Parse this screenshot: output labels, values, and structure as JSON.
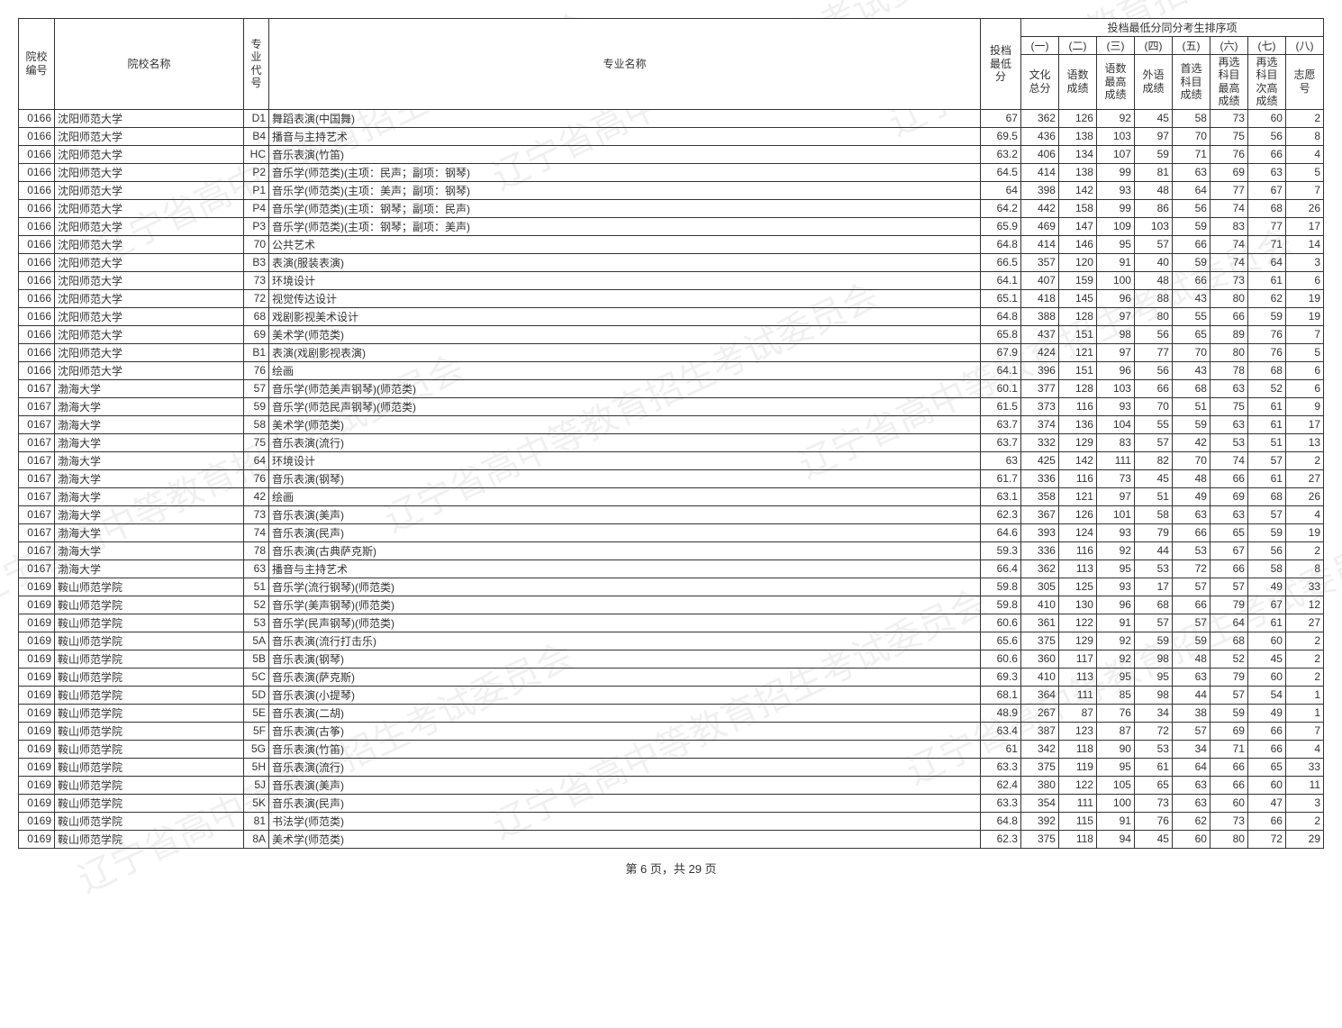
{
  "footer": "第 6 页，共 29 页",
  "watermark_text": "辽宁省高中等教育招生考试委员会",
  "headers": {
    "col_code": "院校\n编号",
    "col_name": "院校名称",
    "col_mcode": "专\n业\n代\n号",
    "col_major": "专业名称",
    "col_score": "投档\n最低\n分",
    "tiebreak_group": "投档最低分同分考生排序项",
    "t1": "(一)",
    "t2": "(二)",
    "t3": "(三)",
    "t4": "(四)",
    "t5": "(五)",
    "t6": "(六)",
    "t7": "(七)",
    "t8": "(八)",
    "s1": "文化\n总分",
    "s2": "语数\n成绩",
    "s3": "语数\n最高\n成绩",
    "s4": "外语\n成绩",
    "s5": "首选\n科目\n成绩",
    "s6": "再选\n科目\n最高\n成绩",
    "s7": "再选\n科目\n次高\n成绩",
    "s8": "志愿\n号"
  },
  "rows": [
    [
      "0166",
      "沈阳师范大学",
      "D1",
      "舞蹈表演(中国舞)",
      "67",
      "362",
      "126",
      "92",
      "45",
      "58",
      "73",
      "60",
      "2"
    ],
    [
      "0166",
      "沈阳师范大学",
      "B4",
      "播音与主持艺术",
      "69.5",
      "436",
      "138",
      "103",
      "97",
      "70",
      "75",
      "56",
      "8"
    ],
    [
      "0166",
      "沈阳师范大学",
      "HC",
      "音乐表演(竹笛)",
      "63.2",
      "406",
      "134",
      "107",
      "59",
      "71",
      "76",
      "66",
      "4"
    ],
    [
      "0166",
      "沈阳师范大学",
      "P2",
      "音乐学(师范类)(主项：民声；副项：钢琴)",
      "64.5",
      "414",
      "138",
      "99",
      "81",
      "63",
      "69",
      "63",
      "5"
    ],
    [
      "0166",
      "沈阳师范大学",
      "P1",
      "音乐学(师范类)(主项：美声；副项：钢琴)",
      "64",
      "398",
      "142",
      "93",
      "48",
      "64",
      "77",
      "67",
      "7"
    ],
    [
      "0166",
      "沈阳师范大学",
      "P4",
      "音乐学(师范类)(主项：钢琴；副项：民声)",
      "64.2",
      "442",
      "158",
      "99",
      "86",
      "56",
      "74",
      "68",
      "26"
    ],
    [
      "0166",
      "沈阳师范大学",
      "P3",
      "音乐学(师范类)(主项：钢琴；副项：美声)",
      "65.9",
      "469",
      "147",
      "109",
      "103",
      "59",
      "83",
      "77",
      "17"
    ],
    [
      "0166",
      "沈阳师范大学",
      "70",
      "公共艺术",
      "64.8",
      "414",
      "146",
      "95",
      "57",
      "66",
      "74",
      "71",
      "14"
    ],
    [
      "0166",
      "沈阳师范大学",
      "B3",
      "表演(服装表演)",
      "66.5",
      "357",
      "120",
      "91",
      "40",
      "59",
      "74",
      "64",
      "3"
    ],
    [
      "0166",
      "沈阳师范大学",
      "73",
      "环境设计",
      "64.1",
      "407",
      "159",
      "100",
      "48",
      "66",
      "73",
      "61",
      "6"
    ],
    [
      "0166",
      "沈阳师范大学",
      "72",
      "视觉传达设计",
      "65.1",
      "418",
      "145",
      "96",
      "88",
      "43",
      "80",
      "62",
      "19"
    ],
    [
      "0166",
      "沈阳师范大学",
      "68",
      "戏剧影视美术设计",
      "64.8",
      "388",
      "128",
      "97",
      "80",
      "55",
      "66",
      "59",
      "19"
    ],
    [
      "0166",
      "沈阳师范大学",
      "69",
      "美术学(师范类)",
      "65.8",
      "437",
      "151",
      "98",
      "56",
      "65",
      "89",
      "76",
      "7"
    ],
    [
      "0166",
      "沈阳师范大学",
      "B1",
      "表演(戏剧影视表演)",
      "67.9",
      "424",
      "121",
      "97",
      "77",
      "70",
      "80",
      "76",
      "5"
    ],
    [
      "0166",
      "沈阳师范大学",
      "76",
      "绘画",
      "64.1",
      "396",
      "151",
      "96",
      "56",
      "43",
      "78",
      "68",
      "6"
    ],
    [
      "0167",
      "渤海大学",
      "57",
      "音乐学(师范美声钢琴)(师范类)",
      "60.1",
      "377",
      "128",
      "103",
      "66",
      "68",
      "63",
      "52",
      "6"
    ],
    [
      "0167",
      "渤海大学",
      "59",
      "音乐学(师范民声钢琴)(师范类)",
      "61.5",
      "373",
      "116",
      "93",
      "70",
      "51",
      "75",
      "61",
      "9"
    ],
    [
      "0167",
      "渤海大学",
      "58",
      "美术学(师范类)",
      "63.7",
      "374",
      "136",
      "104",
      "55",
      "59",
      "63",
      "61",
      "17"
    ],
    [
      "0167",
      "渤海大学",
      "75",
      "音乐表演(流行)",
      "63.7",
      "332",
      "129",
      "83",
      "57",
      "42",
      "53",
      "51",
      "13"
    ],
    [
      "0167",
      "渤海大学",
      "64",
      "环境设计",
      "63",
      "425",
      "142",
      "111",
      "82",
      "70",
      "74",
      "57",
      "2"
    ],
    [
      "0167",
      "渤海大学",
      "76",
      "音乐表演(钢琴)",
      "61.7",
      "336",
      "116",
      "73",
      "45",
      "48",
      "66",
      "61",
      "27"
    ],
    [
      "0167",
      "渤海大学",
      "42",
      "绘画",
      "63.1",
      "358",
      "121",
      "97",
      "51",
      "49",
      "69",
      "68",
      "26"
    ],
    [
      "0167",
      "渤海大学",
      "73",
      "音乐表演(美声)",
      "62.3",
      "367",
      "126",
      "101",
      "58",
      "63",
      "63",
      "57",
      "4"
    ],
    [
      "0167",
      "渤海大学",
      "74",
      "音乐表演(民声)",
      "64.6",
      "393",
      "124",
      "93",
      "79",
      "66",
      "65",
      "59",
      "19"
    ],
    [
      "0167",
      "渤海大学",
      "78",
      "音乐表演(古典萨克斯)",
      "59.3",
      "336",
      "116",
      "92",
      "44",
      "53",
      "67",
      "56",
      "2"
    ],
    [
      "0167",
      "渤海大学",
      "63",
      "播音与主持艺术",
      "66.4",
      "362",
      "113",
      "95",
      "53",
      "72",
      "66",
      "58",
      "8"
    ],
    [
      "0169",
      "鞍山师范学院",
      "51",
      "音乐学(流行钢琴)(师范类)",
      "59.8",
      "305",
      "125",
      "93",
      "17",
      "57",
      "57",
      "49",
      "33"
    ],
    [
      "0169",
      "鞍山师范学院",
      "52",
      "音乐学(美声钢琴)(师范类)",
      "59.8",
      "410",
      "130",
      "96",
      "68",
      "66",
      "79",
      "67",
      "12"
    ],
    [
      "0169",
      "鞍山师范学院",
      "53",
      "音乐学(民声钢琴)(师范类)",
      "60.6",
      "361",
      "122",
      "91",
      "57",
      "57",
      "64",
      "61",
      "27"
    ],
    [
      "0169",
      "鞍山师范学院",
      "5A",
      "音乐表演(流行打击乐)",
      "65.6",
      "375",
      "129",
      "92",
      "59",
      "59",
      "68",
      "60",
      "2"
    ],
    [
      "0169",
      "鞍山师范学院",
      "5B",
      "音乐表演(钢琴)",
      "60.6",
      "360",
      "117",
      "92",
      "98",
      "48",
      "52",
      "45",
      "2"
    ],
    [
      "0169",
      "鞍山师范学院",
      "5C",
      "音乐表演(萨克斯)",
      "69.3",
      "410",
      "113",
      "95",
      "95",
      "63",
      "79",
      "60",
      "2"
    ],
    [
      "0169",
      "鞍山师范学院",
      "5D",
      "音乐表演(小提琴)",
      "68.1",
      "364",
      "111",
      "85",
      "98",
      "44",
      "57",
      "54",
      "1"
    ],
    [
      "0169",
      "鞍山师范学院",
      "5E",
      "音乐表演(二胡)",
      "48.9",
      "267",
      "87",
      "76",
      "34",
      "38",
      "59",
      "49",
      "1"
    ],
    [
      "0169",
      "鞍山师范学院",
      "5F",
      "音乐表演(古筝)",
      "63.4",
      "387",
      "123",
      "87",
      "72",
      "57",
      "69",
      "66",
      "7"
    ],
    [
      "0169",
      "鞍山师范学院",
      "5G",
      "音乐表演(竹笛)",
      "61",
      "342",
      "118",
      "90",
      "53",
      "34",
      "71",
      "66",
      "4"
    ],
    [
      "0169",
      "鞍山师范学院",
      "5H",
      "音乐表演(流行)",
      "63.3",
      "375",
      "119",
      "95",
      "61",
      "64",
      "66",
      "65",
      "33"
    ],
    [
      "0169",
      "鞍山师范学院",
      "5J",
      "音乐表演(美声)",
      "62.4",
      "380",
      "122",
      "105",
      "65",
      "63",
      "66",
      "60",
      "11"
    ],
    [
      "0169",
      "鞍山师范学院",
      "5K",
      "音乐表演(民声)",
      "63.3",
      "354",
      "111",
      "100",
      "73",
      "63",
      "60",
      "47",
      "3"
    ],
    [
      "0169",
      "鞍山师范学院",
      "81",
      "书法学(师范类)",
      "64.8",
      "392",
      "115",
      "91",
      "76",
      "62",
      "73",
      "66",
      "2"
    ],
    [
      "0169",
      "鞍山师范学院",
      "8A",
      "美术学(师范类)",
      "62.3",
      "375",
      "118",
      "94",
      "45",
      "60",
      "80",
      "72",
      "29"
    ]
  ]
}
